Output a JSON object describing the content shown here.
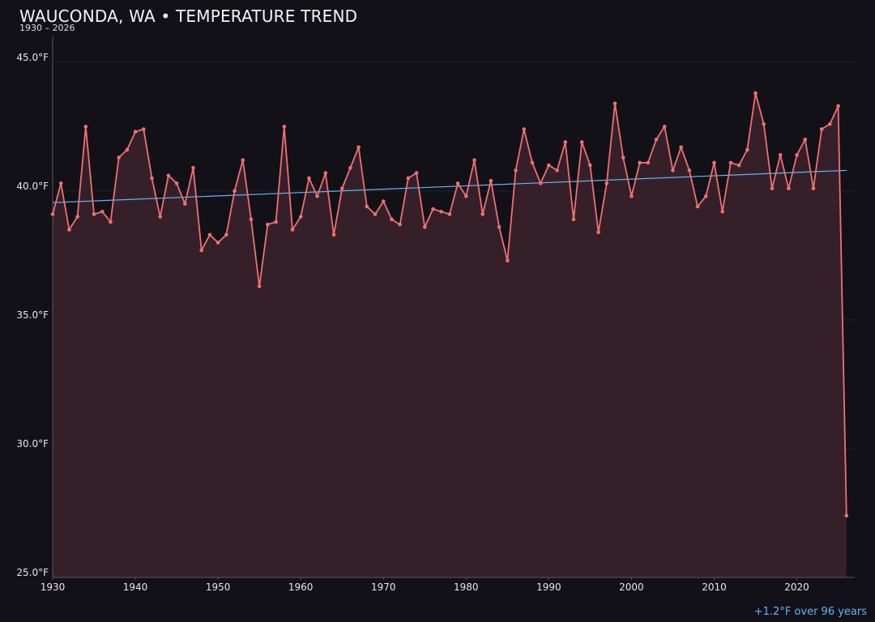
{
  "header": {
    "title": "WAUCONDA, WA • TEMPERATURE TREND",
    "subtitle": "1930 – 2026"
  },
  "footer": {
    "trend_note": "+1.2°F over 96 years"
  },
  "colors": {
    "background": "#121118",
    "line": "#f07070",
    "area_fill": "#35202a",
    "trend": "#64b5f6",
    "grid": "#24202a",
    "axis": "#5a5560"
  },
  "chart_data": {
    "type": "line",
    "title": "WAUCONDA, WA • TEMPERATURE TREND",
    "subtitle": "1930 – 2026",
    "xlabel": "",
    "ylabel": "",
    "xlim": [
      1930,
      2027
    ],
    "ylim": [
      25,
      46
    ],
    "grid": true,
    "area_fill": true,
    "x_ticks": [
      1930,
      1940,
      1950,
      1960,
      1970,
      1980,
      1990,
      2000,
      2010,
      2020
    ],
    "y_ticks": [
      {
        "value": 25,
        "label": "25.0°F"
      },
      {
        "value": 30,
        "label": "30.0°F"
      },
      {
        "value": 35,
        "label": "35.0°F"
      },
      {
        "value": 40,
        "label": "40.0°F"
      },
      {
        "value": 45,
        "label": "45.0°F"
      }
    ],
    "x": [
      1930,
      1931,
      1932,
      1933,
      1934,
      1935,
      1936,
      1937,
      1938,
      1939,
      1940,
      1941,
      1942,
      1943,
      1944,
      1945,
      1946,
      1947,
      1948,
      1949,
      1950,
      1951,
      1952,
      1953,
      1954,
      1955,
      1956,
      1957,
      1958,
      1959,
      1960,
      1961,
      1962,
      1963,
      1964,
      1965,
      1966,
      1967,
      1968,
      1969,
      1970,
      1971,
      1972,
      1973,
      1974,
      1975,
      1976,
      1977,
      1978,
      1979,
      1980,
      1981,
      1982,
      1983,
      1984,
      1985,
      1986,
      1987,
      1988,
      1989,
      1990,
      1991,
      1992,
      1993,
      1994,
      1995,
      1996,
      1997,
      1998,
      1999,
      2000,
      2001,
      2002,
      2003,
      2004,
      2005,
      2006,
      2007,
      2008,
      2009,
      2010,
      2011,
      2012,
      2013,
      2014,
      2015,
      2016,
      2017,
      2018,
      2019,
      2020,
      2021,
      2022,
      2023,
      2024,
      2025,
      2026
    ],
    "values": [
      39.1,
      40.3,
      38.5,
      39.0,
      42.5,
      39.1,
      39.2,
      38.8,
      41.3,
      41.6,
      42.3,
      42.4,
      40.5,
      39.0,
      40.6,
      40.3,
      39.5,
      40.9,
      37.7,
      38.3,
      38.0,
      38.3,
      40.0,
      41.2,
      38.9,
      36.3,
      38.7,
      38.8,
      42.5,
      38.5,
      39.0,
      40.5,
      39.8,
      40.7,
      38.3,
      40.1,
      40.9,
      41.7,
      39.4,
      39.1,
      39.6,
      38.9,
      38.7,
      40.5,
      40.7,
      38.6,
      39.3,
      39.2,
      39.1,
      40.3,
      39.8,
      41.2,
      39.1,
      40.4,
      38.6,
      37.3,
      40.8,
      42.4,
      41.1,
      40.3,
      41.0,
      40.8,
      41.9,
      38.9,
      41.9,
      41.0,
      38.4,
      40.3,
      43.4,
      41.3,
      39.8,
      41.1,
      41.1,
      42.0,
      42.5,
      40.8,
      41.7,
      40.8,
      39.4,
      39.8,
      41.1,
      39.2,
      41.1,
      41.0,
      41.6,
      43.8,
      42.6,
      40.1,
      41.4,
      40.1,
      41.4,
      42.0,
      40.1,
      42.4,
      42.6,
      43.3,
      27.4
    ],
    "trend": {
      "x": [
        1930,
        2026
      ],
      "values": [
        39.55,
        40.8
      ]
    }
  }
}
